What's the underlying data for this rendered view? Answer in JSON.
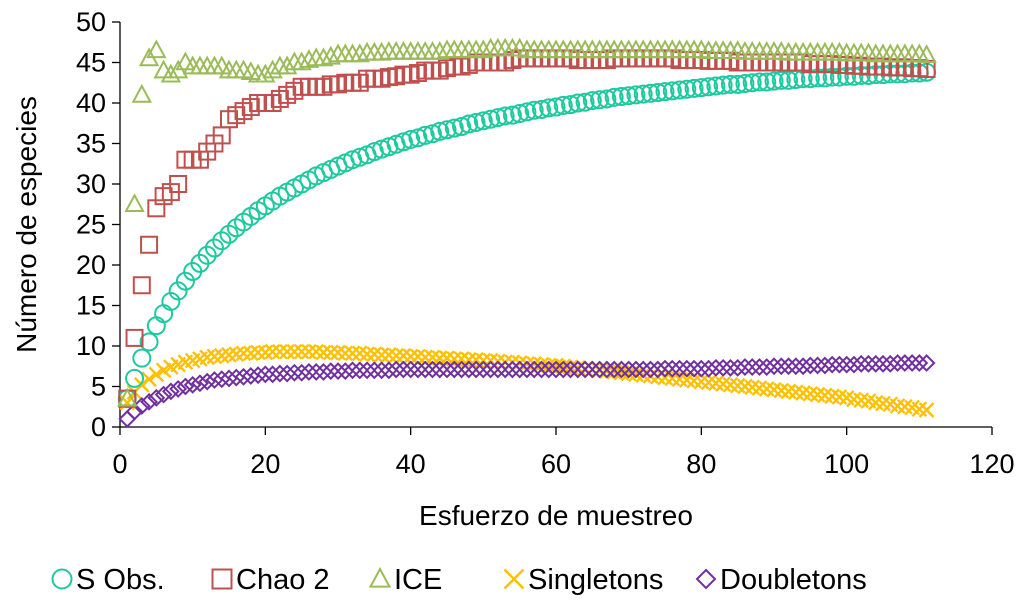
{
  "chart_data": {
    "type": "scatter",
    "title": "",
    "xlabel": "Esfuerzo de muestreo",
    "ylabel": "Número de especies",
    "xlim": [
      0,
      120
    ],
    "ylim": [
      0,
      50
    ],
    "xticks": [
      "0",
      "20",
      "40",
      "60",
      "80",
      "100",
      "120"
    ],
    "yticks": [
      "0",
      "5",
      "10",
      "15",
      "20",
      "25",
      "30",
      "35",
      "40",
      "45",
      "50"
    ],
    "grid": false,
    "legend_position": "bottom",
    "series": [
      {
        "name": "S Obs.",
        "marker": "circle",
        "color": "#1fc9a0",
        "x": [
          1,
          2,
          3,
          4,
          5,
          6,
          7,
          8,
          9,
          10,
          11,
          12,
          13,
          14,
          15,
          16,
          17,
          18,
          19,
          20,
          21,
          22,
          23,
          24,
          25,
          26,
          27,
          28,
          29,
          30,
          31,
          32,
          33,
          34,
          35,
          36,
          37,
          38,
          39,
          40,
          41,
          42,
          43,
          44,
          45,
          46,
          47,
          48,
          49,
          50,
          51,
          52,
          53,
          54,
          55,
          56,
          57,
          58,
          59,
          60,
          61,
          62,
          63,
          64,
          65,
          66,
          67,
          68,
          69,
          70,
          71,
          72,
          73,
          74,
          75,
          76,
          77,
          78,
          79,
          80,
          81,
          82,
          83,
          84,
          85,
          86,
          87,
          88,
          89,
          90,
          91,
          92,
          93,
          94,
          95,
          96,
          97,
          98,
          99,
          100,
          101,
          102,
          103,
          104,
          105,
          106,
          107,
          108,
          109,
          110,
          111
        ],
        "y": [
          3.5,
          6,
          8.5,
          10.5,
          12.5,
          14,
          15.5,
          16.8,
          18,
          19.2,
          20.2,
          21.2,
          22.1,
          23,
          23.8,
          24.6,
          25.3,
          26,
          26.7,
          27.3,
          27.9,
          28.5,
          29,
          29.5,
          30,
          30.5,
          31,
          31.4,
          31.8,
          32.2,
          32.6,
          33,
          33.3,
          33.6,
          34,
          34.3,
          34.6,
          34.9,
          35.2,
          35.5,
          35.7,
          36,
          36.2,
          36.5,
          36.7,
          36.9,
          37.1,
          37.4,
          37.6,
          37.8,
          38,
          38.2,
          38.4,
          38.5,
          38.7,
          38.9,
          39.1,
          39.2,
          39.4,
          39.5,
          39.7,
          39.8,
          40,
          40.1,
          40.3,
          40.4,
          40.5,
          40.7,
          40.8,
          40.9,
          41,
          41.1,
          41.2,
          41.3,
          41.4,
          41.5,
          41.6,
          41.7,
          41.8,
          41.9,
          42,
          42.1,
          42.2,
          42.3,
          42.3,
          42.4,
          42.5,
          42.6,
          42.6,
          42.7,
          42.8,
          42.8,
          42.9,
          43,
          43,
          43.1,
          43.1,
          43.2,
          43.2,
          43.3,
          43.3,
          43.4,
          43.4,
          43.5,
          43.5,
          43.6,
          43.6,
          43.6,
          43.7,
          43.7,
          43.8
        ]
      },
      {
        "name": "Chao 2",
        "marker": "square",
        "color": "#c0504d",
        "x": [
          1,
          2,
          3,
          4,
          5,
          6,
          7,
          8,
          9,
          10,
          11,
          12,
          13,
          14,
          15,
          16,
          17,
          18,
          19,
          20,
          21,
          22,
          23,
          24,
          25,
          26,
          27,
          28,
          29,
          30,
          31,
          32,
          33,
          34,
          35,
          36,
          37,
          38,
          39,
          40,
          41,
          42,
          43,
          44,
          45,
          46,
          47,
          48,
          49,
          50,
          51,
          52,
          53,
          54,
          55,
          56,
          57,
          58,
          59,
          60,
          61,
          62,
          63,
          64,
          65,
          66,
          67,
          68,
          69,
          70,
          71,
          72,
          73,
          74,
          75,
          76,
          77,
          78,
          79,
          80,
          81,
          82,
          83,
          84,
          85,
          86,
          87,
          88,
          89,
          90,
          91,
          92,
          93,
          94,
          95,
          96,
          97,
          98,
          99,
          100,
          101,
          102,
          103,
          104,
          105,
          106,
          107,
          108,
          109,
          110,
          111
        ],
        "y": [
          3.5,
          11,
          17.5,
          22.5,
          27,
          28.5,
          29,
          30,
          33,
          33,
          33,
          34,
          35,
          36,
          38,
          38.5,
          39,
          39.5,
          40,
          40,
          40,
          40.5,
          41,
          41.5,
          42,
          42,
          42,
          42,
          42.3,
          42.3,
          42.5,
          42.5,
          42.5,
          43,
          43,
          43,
          43.2,
          43.3,
          43.5,
          43.5,
          43.7,
          44,
          44,
          44,
          44.3,
          44.5,
          44.5,
          44.7,
          45,
          45,
          45,
          45,
          45,
          45.3,
          45.5,
          45.5,
          45.5,
          45.5,
          45.5,
          45.5,
          45.5,
          45.5,
          45.3,
          45.3,
          45.3,
          45.3,
          45.3,
          45.5,
          45.5,
          45.5,
          45.5,
          45.5,
          45.5,
          45.5,
          45.5,
          45.5,
          45.3,
          45.3,
          45.3,
          45.3,
          45.2,
          45.2,
          45.2,
          45.2,
          45,
          45,
          45,
          45,
          45,
          45,
          45,
          45,
          45,
          45,
          44.8,
          44.8,
          44.8,
          44.8,
          44.7,
          44.7,
          44.6,
          44.6,
          44.5,
          44.5,
          44.5,
          44.4,
          44.4,
          44.4,
          44.3,
          44.3,
          44.2
        ]
      },
      {
        "name": "ICE",
        "marker": "triangle",
        "color": "#9bbb59",
        "x": [
          1,
          2,
          3,
          4,
          5,
          6,
          7,
          8,
          9,
          10,
          11,
          12,
          13,
          14,
          15,
          16,
          17,
          18,
          19,
          20,
          21,
          22,
          23,
          24,
          25,
          26,
          27,
          28,
          29,
          30,
          31,
          32,
          33,
          34,
          35,
          36,
          37,
          38,
          39,
          40,
          41,
          42,
          43,
          44,
          45,
          46,
          47,
          48,
          49,
          50,
          51,
          52,
          53,
          54,
          55,
          56,
          57,
          58,
          59,
          60,
          61,
          62,
          63,
          64,
          65,
          66,
          67,
          68,
          69,
          70,
          71,
          72,
          73,
          74,
          75,
          76,
          77,
          78,
          79,
          80,
          81,
          82,
          83,
          84,
          85,
          86,
          87,
          88,
          89,
          90,
          91,
          92,
          93,
          94,
          95,
          96,
          97,
          98,
          99,
          100,
          101,
          102,
          103,
          104,
          105,
          106,
          107,
          108,
          109,
          110,
          111
        ],
        "y": [
          3.5,
          27.5,
          41,
          45.5,
          46.5,
          44,
          43.5,
          44,
          45,
          44.5,
          44.5,
          44.5,
          44.5,
          44.5,
          44,
          44,
          44,
          43.8,
          43.5,
          43.5,
          44,
          44.5,
          44.5,
          45,
          45,
          45.3,
          45.5,
          45.5,
          45.7,
          46,
          46,
          46,
          46,
          46.2,
          46.2,
          46.2,
          46.3,
          46.3,
          46.3,
          46.3,
          46.3,
          46.3,
          46.3,
          46.3,
          46.5,
          46.5,
          46.5,
          46.5,
          46.5,
          46.5,
          46.7,
          46.7,
          46.7,
          46.7,
          46.7,
          46.5,
          46.5,
          46.5,
          46.5,
          46.5,
          46.5,
          46.5,
          46.5,
          46.5,
          46.5,
          46.5,
          46.5,
          46.5,
          46.5,
          46.5,
          46.5,
          46.5,
          46.5,
          46.5,
          46.5,
          46.5,
          46.5,
          46.5,
          46.5,
          46.5,
          46.4,
          46.4,
          46.4,
          46.4,
          46.4,
          46.3,
          46.3,
          46.3,
          46.3,
          46.3,
          46.3,
          46.2,
          46.2,
          46.2,
          46.2,
          46.2,
          46.2,
          46.2,
          46.2,
          46.1,
          46.1,
          46.1,
          46.1,
          46,
          46,
          46,
          46,
          46,
          46,
          46,
          45.9
        ]
      },
      {
        "name": "Singletons",
        "marker": "x",
        "color": "#ffc000",
        "x": [
          1,
          2,
          3,
          4,
          5,
          6,
          7,
          8,
          9,
          10,
          11,
          12,
          13,
          14,
          15,
          16,
          17,
          18,
          19,
          20,
          21,
          22,
          23,
          24,
          25,
          26,
          27,
          28,
          29,
          30,
          31,
          32,
          33,
          34,
          35,
          36,
          37,
          38,
          39,
          40,
          41,
          42,
          43,
          44,
          45,
          46,
          47,
          48,
          49,
          50,
          51,
          52,
          53,
          54,
          55,
          56,
          57,
          58,
          59,
          60,
          61,
          62,
          63,
          64,
          65,
          66,
          67,
          68,
          69,
          70,
          71,
          72,
          73,
          74,
          75,
          76,
          77,
          78,
          79,
          80,
          81,
          82,
          83,
          84,
          85,
          86,
          87,
          88,
          89,
          90,
          91,
          92,
          93,
          94,
          95,
          96,
          97,
          98,
          99,
          100,
          101,
          102,
          103,
          104,
          105,
          106,
          107,
          108,
          109,
          110,
          111
        ],
        "y": [
          3,
          4.3,
          5.2,
          5.9,
          6.5,
          7,
          7.4,
          7.7,
          8,
          8.2,
          8.4,
          8.6,
          8.7,
          8.8,
          8.9,
          9,
          9.1,
          9.1,
          9.2,
          9.2,
          9.3,
          9.3,
          9.3,
          9.3,
          9.3,
          9.3,
          9.3,
          9.2,
          9.2,
          9.2,
          9.1,
          9.1,
          9.1,
          9,
          9,
          8.9,
          8.9,
          8.8,
          8.8,
          8.7,
          8.7,
          8.6,
          8.6,
          8.5,
          8.5,
          8.4,
          8.4,
          8.3,
          8.3,
          8.2,
          8.2,
          8.1,
          8,
          8,
          7.9,
          7.8,
          7.8,
          7.7,
          7.6,
          7.6,
          7.5,
          7.4,
          7.3,
          7.2,
          7.1,
          7,
          6.9,
          6.8,
          6.7,
          6.6,
          6.5,
          6.4,
          6.3,
          6.2,
          6.1,
          6,
          5.9,
          5.8,
          5.7,
          5.6,
          5.5,
          5.4,
          5.3,
          5.2,
          5.1,
          5,
          4.9,
          4.8,
          4.7,
          4.6,
          4.5,
          4.4,
          4.3,
          4.2,
          4.1,
          4,
          3.9,
          3.8,
          3.7,
          3.6,
          3.4,
          3.3,
          3.2,
          3,
          2.9,
          2.8,
          2.6,
          2.5,
          2.4,
          2.2,
          2.1
        ]
      },
      {
        "name": "Doubletons",
        "marker": "diamond",
        "color": "#7030a0",
        "x": [
          1,
          2,
          3,
          4,
          5,
          6,
          7,
          8,
          9,
          10,
          11,
          12,
          13,
          14,
          15,
          16,
          17,
          18,
          19,
          20,
          21,
          22,
          23,
          24,
          25,
          26,
          27,
          28,
          29,
          30,
          31,
          32,
          33,
          34,
          35,
          36,
          37,
          38,
          39,
          40,
          41,
          42,
          43,
          44,
          45,
          46,
          47,
          48,
          49,
          50,
          51,
          52,
          53,
          54,
          55,
          56,
          57,
          58,
          59,
          60,
          61,
          62,
          63,
          64,
          65,
          66,
          67,
          68,
          69,
          70,
          71,
          72,
          73,
          74,
          75,
          76,
          77,
          78,
          79,
          80,
          81,
          82,
          83,
          84,
          85,
          86,
          87,
          88,
          89,
          90,
          91,
          92,
          93,
          94,
          95,
          96,
          97,
          98,
          99,
          100,
          101,
          102,
          103,
          104,
          105,
          106,
          107,
          108,
          109,
          110,
          111
        ],
        "y": [
          1,
          1.9,
          2.6,
          3.1,
          3.6,
          4,
          4.4,
          4.7,
          5,
          5.2,
          5.4,
          5.6,
          5.8,
          5.9,
          6,
          6.1,
          6.2,
          6.3,
          6.4,
          6.5,
          6.5,
          6.6,
          6.6,
          6.7,
          6.7,
          6.8,
          6.8,
          6.8,
          6.9,
          6.9,
          6.9,
          7,
          7,
          7,
          7,
          7,
          7,
          7.1,
          7.1,
          7.1,
          7.1,
          7.1,
          7.1,
          7.1,
          7.1,
          7.1,
          7.1,
          7.1,
          7.1,
          7.1,
          7.1,
          7.1,
          7.1,
          7.1,
          7.1,
          7.1,
          7.1,
          7.1,
          7.1,
          7.1,
          7.1,
          7.1,
          7.1,
          7.1,
          7.1,
          7.1,
          7.1,
          7.1,
          7.1,
          7.1,
          7.1,
          7.1,
          7.1,
          7.1,
          7.2,
          7.2,
          7.2,
          7.2,
          7.2,
          7.2,
          7.2,
          7.3,
          7.3,
          7.3,
          7.3,
          7.4,
          7.4,
          7.4,
          7.4,
          7.5,
          7.5,
          7.5,
          7.5,
          7.5,
          7.6,
          7.6,
          7.6,
          7.7,
          7.7,
          7.7,
          7.7,
          7.8,
          7.8,
          7.8,
          7.8,
          7.8,
          7.9,
          7.9,
          7.9,
          7.9,
          7.9
        ]
      }
    ]
  }
}
